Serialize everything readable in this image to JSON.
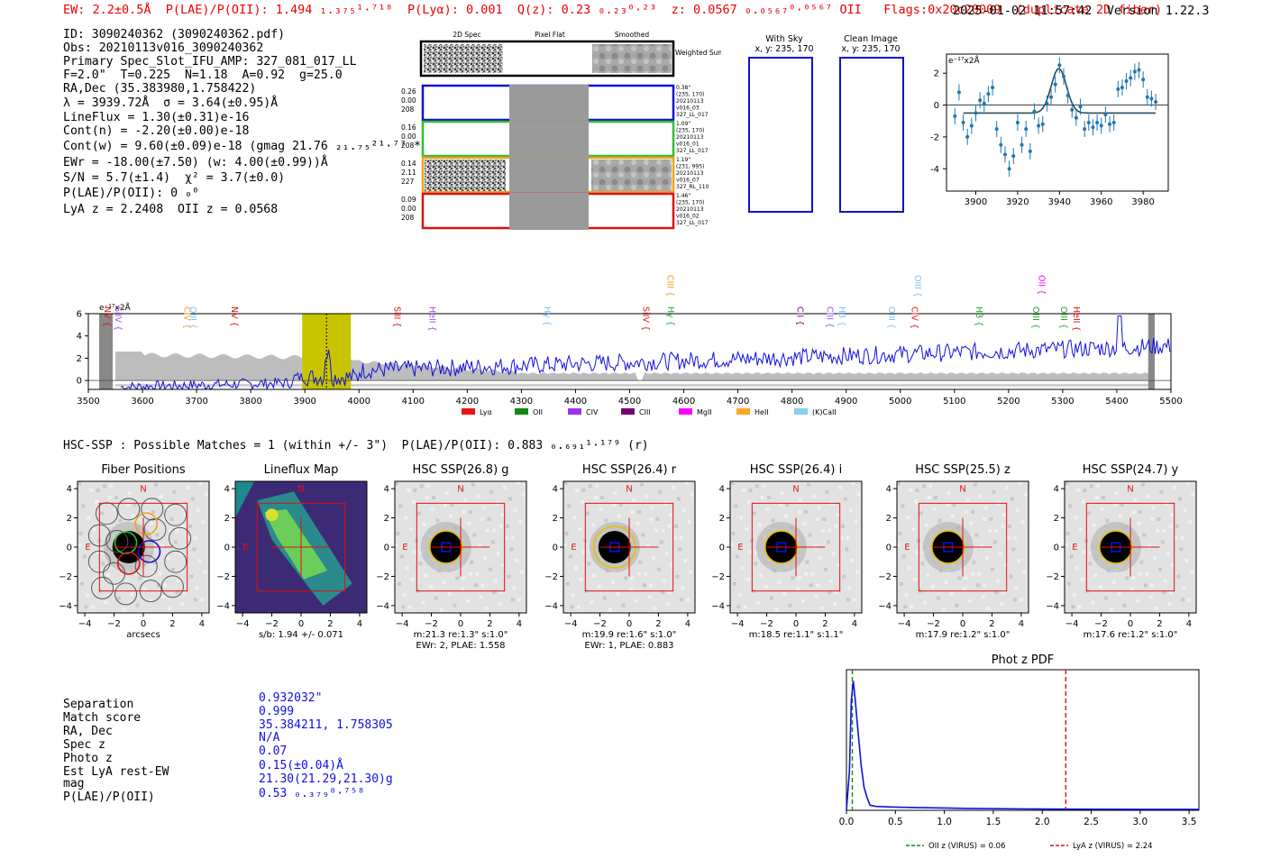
{
  "header": {
    "summary": "EW: 2.2±0.5Å  P(LAE)/P(OII): 1.494 ₁.₃₇₅¹·⁷¹⁸  P(Lyα): 0.001  Q(z): 0.23 ₀.₂₃⁰·²³  z: 0.0567 ₀.₀₅₆₇⁰·⁰⁵⁶⁷ OII   Flags:0x20c20009  (duplicate 2D fiber)",
    "timestamp": "2025-01-02 11:57:42",
    "version": "Version 1.22.3"
  },
  "info": {
    "id": "ID: 3090240362 (3090240362.pdf)",
    "obs": "Obs: 20210113v016_3090240362",
    "spec_slot": "Primary Spec_Slot_IFU_AMP: 327_081_017_LL",
    "params": "F=2.0\"  T=0.225  N=1.18  A=0.92  g=25.0",
    "radec": "RA,Dec (35.383980,1.758422)",
    "lambda": "λ = 3939.72Å  σ = 3.64(±0.95)Å",
    "lineflux": "LineFlux = 1.30(±0.31)e-16",
    "contn": "Cont(n) = -2.20(±0.00)e-18",
    "contw": "Cont(w) = 9.60(±0.09)e-18 (gmag 21.76 ₂₁.₇₅²¹·⁷⁷ *)",
    "ewr": "EWr = -18.00(±7.50) (w: 4.00(±0.99))Å",
    "sn": "S/N = 5.7(±1.4)  χ² = 3.7(±0.0)",
    "plae": "P(LAE)/P(OII): 0 ₀⁰",
    "z": "LyA z = 2.2408  OII z = 0.0568"
  },
  "cutouts": {
    "col_titles": [
      "2D Spec",
      "Pixel Flat",
      "Smoothed"
    ],
    "weighted_sum": "Weighted Sum",
    "rows": [
      {
        "left": [
          "0.26",
          "0.00",
          "208"
        ],
        "right": [
          "0.38\"",
          "(235, 170)",
          "20210113",
          "v016_03",
          "327_LL_017"
        ],
        "color": "#1010d0"
      },
      {
        "left": [
          "0.16",
          "0.00",
          "208"
        ],
        "right": [
          "1.09\"",
          "(235, 170)",
          "20210113",
          "v016_01",
          "327_LL_017"
        ],
        "color": "#30c030"
      },
      {
        "left": [
          "0.14",
          "2.11",
          "227"
        ],
        "right": [
          "1.19\"",
          "(231, 995)",
          "20210113",
          "v016_07",
          "327_RL_110"
        ],
        "color": "#f0a020"
      },
      {
        "left": [
          "0.09",
          "0.00",
          "208"
        ],
        "right": [
          "1.46\"",
          "(235, 170)",
          "20210113",
          "v016_02",
          "327_LL_017"
        ],
        "color": "#e01010"
      }
    ]
  },
  "sky_panels": {
    "with_sky": "With Sky",
    "with_sky_xy": "x, y: 235, 170",
    "clean": "Clean Image",
    "clean_xy": "x, y: 235, 170"
  },
  "zoom_plot": {
    "unit_label": "e⁻¹⁷x2Å",
    "xticks": [
      3900,
      3920,
      3940,
      3960,
      3980
    ],
    "yticks": [
      4,
      2,
      0,
      -2,
      -4
    ],
    "xlim": [
      3886,
      3992
    ],
    "ylim": [
      -5.4,
      3.2
    ],
    "gauss": {
      "amp": 2.8,
      "center": 3939.7,
      "sigma": 3.64,
      "base": -0.5
    },
    "points": [
      [
        3890,
        -0.7
      ],
      [
        3892,
        0.8
      ],
      [
        3894,
        -1.1
      ],
      [
        3896,
        -2
      ],
      [
        3898,
        -1.3
      ],
      [
        3900,
        -0.5
      ],
      [
        3902,
        0.3
      ],
      [
        3904,
        0.1
      ],
      [
        3906,
        0.7
      ],
      [
        3908,
        1.1
      ],
      [
        3910,
        -1.5
      ],
      [
        3912,
        -2.5
      ],
      [
        3914,
        -3.1
      ],
      [
        3916,
        -4
      ],
      [
        3918,
        -3.2
      ],
      [
        3920,
        -1.1
      ],
      [
        3922,
        -2.5
      ],
      [
        3924,
        -1.5
      ],
      [
        3926,
        -2.9
      ],
      [
        3928,
        -0.4
      ],
      [
        3930,
        -1.3
      ],
      [
        3932,
        -1.2
      ],
      [
        3934,
        0.1
      ],
      [
        3936,
        0.5
      ],
      [
        3938,
        1.3
      ],
      [
        3940,
        2.5
      ],
      [
        3942,
        1.8
      ],
      [
        3944,
        0.6
      ],
      [
        3946,
        -0.3
      ],
      [
        3948,
        -0.8
      ],
      [
        3950,
        -0.1
      ],
      [
        3952,
        -1.5
      ],
      [
        3954,
        -1.1
      ],
      [
        3956,
        -1.4
      ],
      [
        3958,
        -1.1
      ],
      [
        3960,
        -1.3
      ],
      [
        3962,
        -0.6
      ],
      [
        3964,
        -1.2
      ],
      [
        3966,
        -1.1
      ],
      [
        3968,
        1.0
      ],
      [
        3970,
        1.1
      ],
      [
        3972,
        1.5
      ],
      [
        3974,
        1.7
      ],
      [
        3976,
        2.1
      ],
      [
        3978,
        2.2
      ],
      [
        3980,
        1.6
      ],
      [
        3982,
        0.5
      ],
      [
        3984,
        0.4
      ],
      [
        3986,
        0.2
      ]
    ]
  },
  "spectrum": {
    "unit_label": "e⁻¹⁷x2Å",
    "xlim": [
      3500,
      5500
    ],
    "ylim": [
      -0.8,
      6
    ],
    "xticks": [
      3500,
      3600,
      3700,
      3800,
      3900,
      4000,
      4100,
      4200,
      4300,
      4400,
      4500,
      4600,
      4700,
      4800,
      4900,
      5000,
      5100,
      5200,
      5300,
      5400,
      5500
    ],
    "yticks": [
      6,
      4,
      2,
      0
    ],
    "highlight_band": [
      3895,
      3985
    ],
    "line_center": 3940,
    "lines": [
      {
        "name": "SiIV",
        "w": 3545,
        "c": "#a050e0",
        "row": 0
      },
      {
        "name": "CIV",
        "w": 3672,
        "c": "#f0a020",
        "row": 0
      },
      {
        "name": "OIII",
        "w": 3683,
        "c": "#80c0f0",
        "row": 0
      },
      {
        "name": "NV",
        "w": 3525,
        "c": "#e01010",
        "row": 1
      },
      {
        "name": "NV",
        "w": 3760,
        "c": "#e01010",
        "row": 0
      },
      {
        "name": "SiII",
        "w": 4060,
        "c": "#e01010",
        "row": 0
      },
      {
        "name": "HeII",
        "w": 4125,
        "c": "#a050e0",
        "row": 0
      },
      {
        "name": "Hγ",
        "w": 4338,
        "c": "#80c0f0",
        "row": 0
      },
      {
        "name": "SiIV",
        "w": 4520,
        "c": "#e01010",
        "row": 0
      },
      {
        "name": "CIII",
        "w": 4565,
        "c": "#f0a020",
        "row": 2
      },
      {
        "name": "Hγ",
        "w": 4566,
        "c": "#30a030",
        "row": 0
      },
      {
        "name": "CII",
        "w": 4805,
        "c": "#800080",
        "row": 0
      },
      {
        "name": "CIII",
        "w": 4860,
        "c": "#a050e0",
        "row": 0
      },
      {
        "name": "Hβ",
        "w": 4882,
        "c": "#80c0f0",
        "row": 0
      },
      {
        "name": "OIII",
        "w": 4974,
        "c": "#80c0f0",
        "row": 0
      },
      {
        "name": "OIII",
        "w": 5022,
        "c": "#80c0f0",
        "row": 2
      },
      {
        "name": "CIV",
        "w": 5016,
        "c": "#e01010",
        "row": 0
      },
      {
        "name": "Hβ",
        "w": 5135,
        "c": "#30a030",
        "row": 0
      },
      {
        "name": "OIII",
        "w": 5240,
        "c": "#30a030",
        "row": 0
      },
      {
        "name": "OII",
        "w": 5251,
        "c": "#ff00ff",
        "row": 2
      },
      {
        "name": "OIII",
        "w": 5292,
        "c": "#30a030",
        "row": 0
      },
      {
        "name": "HeII",
        "w": 5315,
        "c": "#e01010",
        "row": 0
      }
    ],
    "legend": [
      {
        "name": "Lyα",
        "c": "#ee1111"
      },
      {
        "name": "OII",
        "c": "#118811"
      },
      {
        "name": "CIV",
        "c": "#9933ee"
      },
      {
        "name": "CIII",
        "c": "#770077"
      },
      {
        "name": "MgII",
        "c": "#ff00ff"
      },
      {
        "name": "HeII",
        "c": "#ffa520"
      },
      {
        "name": "(K)CaII",
        "c": "#88ccf0"
      }
    ]
  },
  "hsc": {
    "summary": "HSC-SSP : Possible Matches = 1 (within +/- 3\")  P(LAE)/P(OII): 0.883 ₀.₆₉₁¹·¹⁷⁹ (r)",
    "panels": [
      {
        "title": "Fiber Positions",
        "type": "fibers",
        "lines": [
          "arcsecs",
          ""
        ]
      },
      {
        "title": "Lineflux Map",
        "type": "lineflux",
        "lines": [
          "s/b: 1.94 +/- 0.071",
          ""
        ]
      },
      {
        "title": "HSC SSP(26.8) g",
        "type": "img",
        "lines": [
          "m:21.3  re:1.3\"  s:1.0\"",
          "EWr: 2, PLAE: 1.558"
        ]
      },
      {
        "title": "HSC SSP(26.4) r",
        "type": "img",
        "lines": [
          "m:19.9  re:1.6\"  s:1.0\"",
          "EWr: 1, PLAE: 0.883"
        ]
      },
      {
        "title": "HSC SSP(26.4) i",
        "type": "img",
        "lines": [
          "m:18.5  re:1.1\"  s:1.1\"",
          ""
        ]
      },
      {
        "title": "HSC SSP(25.5) z",
        "type": "img",
        "lines": [
          "m:17.9  re:1.2\"  s:1.0\"",
          ""
        ]
      },
      {
        "title": "HSC SSP(24.7) y",
        "type": "img",
        "lines": [
          "m:17.6  re:1.2\"  s:1.0\"",
          ""
        ]
      }
    ],
    "ticks": [
      -4,
      -2,
      0,
      2,
      4
    ],
    "north": "N",
    "east": "E"
  },
  "match": {
    "labels": [
      "Separation",
      "Match score",
      "RA, Dec",
      "Spec z",
      "Photo z",
      "Est LyA rest-EW",
      "mag",
      "P(LAE)/P(OII)"
    ],
    "values": [
      "0.932032\"",
      "0.999",
      "35.384211, 1.758305",
      "N/A",
      "0.07",
      "0.15(±0.04)Å",
      "21.30(21.29,21.30)g",
      "0.53 ₀.₃₇₉⁰·⁷⁵⁸"
    ]
  },
  "photz": {
    "title": "Phot z PDF",
    "xticks": [
      "0.0",
      "0.5",
      "1.0",
      "1.5",
      "2.0",
      "2.5",
      "3.0",
      "3.5"
    ],
    "xlim": [
      0,
      3.6
    ],
    "oii_z": 0.06,
    "lya_z": 2.24,
    "legend_oii": "OII z (VIRUS) = 0.06",
    "legend_lya": "LyA z (VIRUS) = 2.24",
    "pdf": [
      [
        0,
        0
      ],
      [
        0.03,
        0.3
      ],
      [
        0.05,
        0.85
      ],
      [
        0.07,
        1.0
      ],
      [
        0.09,
        0.85
      ],
      [
        0.12,
        0.6
      ],
      [
        0.15,
        0.35
      ],
      [
        0.18,
        0.18
      ],
      [
        0.21,
        0.1
      ],
      [
        0.24,
        0.04
      ],
      [
        0.3,
        0.03
      ],
      [
        0.5,
        0.025
      ],
      [
        0.8,
        0.02
      ],
      [
        1.2,
        0.015
      ],
      [
        2,
        0.01
      ],
      [
        3,
        0.008
      ],
      [
        3.6,
        0.008
      ]
    ]
  }
}
